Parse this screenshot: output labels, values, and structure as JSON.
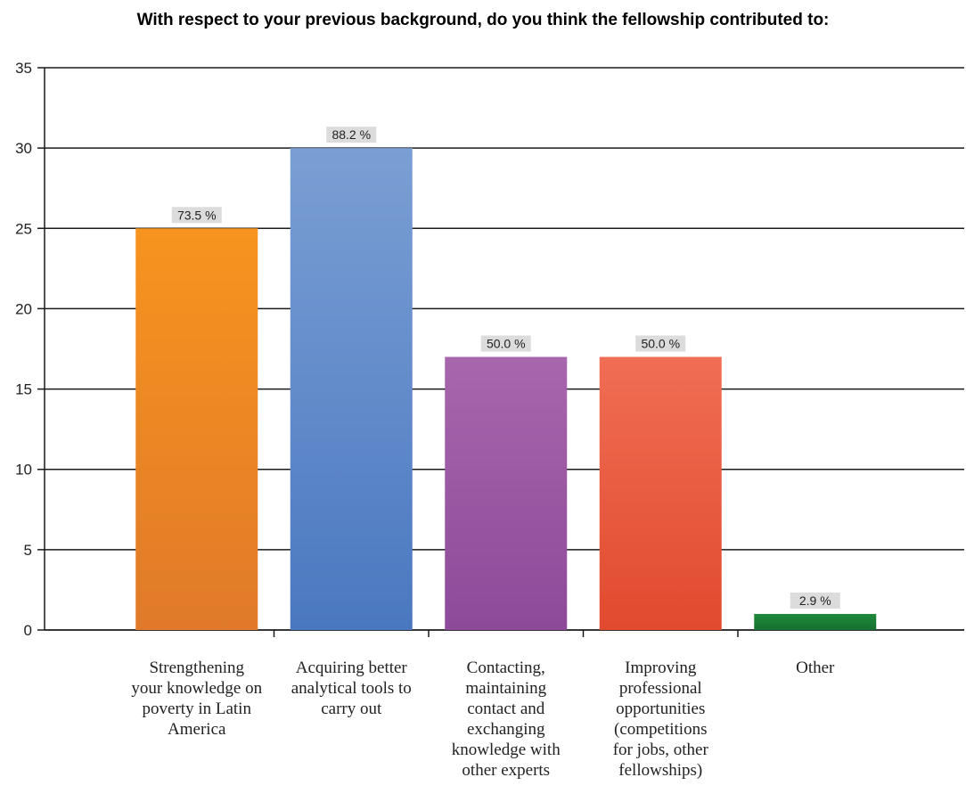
{
  "chart_data": {
    "type": "bar",
    "title": "With respect to your previous background, do you think the fellowship contributed to:",
    "xlabel": "",
    "ylabel": "",
    "ylim": [
      0,
      35
    ],
    "yticks": [
      0,
      5,
      10,
      15,
      20,
      25,
      30,
      35
    ],
    "grid": true,
    "legend": "none",
    "categories": [
      "Strengthening your knowledge on poverty in Latin America",
      "Acquiring better analytical tools to carry out",
      "Contacting, maintaining contact and exchanging knowledge with other experts",
      "Improving professional opportunities (competitions for jobs, other fellowships)",
      "Other"
    ],
    "category_label_lines": [
      [
        "Strengthening",
        "your knowledge on",
        "poverty in Latin",
        "America"
      ],
      [
        "Acquiring better",
        "analytical tools to",
        "carry out"
      ],
      [
        "Contacting,",
        "maintaining",
        "contact and",
        "exchanging",
        "knowledge with",
        "other experts"
      ],
      [
        "Improving",
        "professional",
        "opportunities",
        "(competitions",
        "for jobs, other",
        "fellowships)"
      ],
      [
        "Other"
      ]
    ],
    "values": [
      25,
      30,
      17,
      17,
      1
    ],
    "data_labels": [
      "73.5 %",
      "88.2 %",
      "50.0 %",
      "50.0 %",
      "2.9 %"
    ],
    "colors": [
      [
        "#f7941e",
        "#e07a2a"
      ],
      [
        "#7b9fd4",
        "#4a78c0"
      ],
      [
        "#a866ad",
        "#8c4a99"
      ],
      [
        "#f06e54",
        "#e14a2e"
      ],
      [
        "#1f8a3a",
        "#157030"
      ]
    ]
  }
}
